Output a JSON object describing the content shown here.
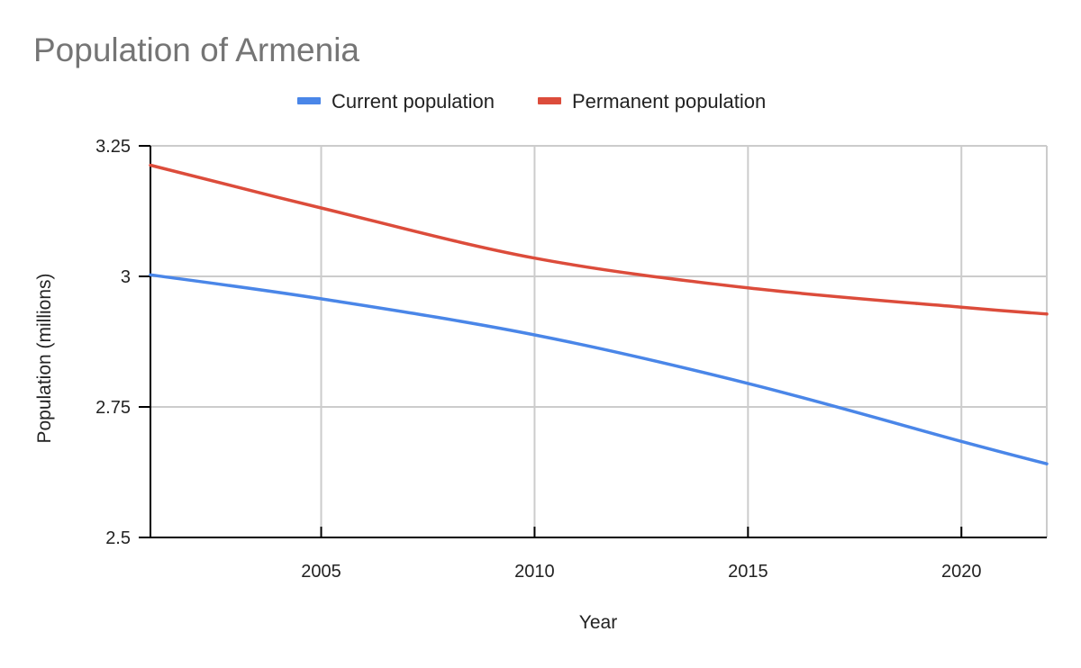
{
  "chart_data": {
    "type": "line",
    "title": "Population of Armenia",
    "xlabel": "Year",
    "ylabel": "Population (millions)",
    "xlim": [
      2001,
      2022
    ],
    "ylim": [
      2.5,
      3.25
    ],
    "x_ticks": [
      2005,
      2010,
      2015,
      2020
    ],
    "x_tick_labels": [
      "2005",
      "2010",
      "2015",
      "2020"
    ],
    "y_ticks": [
      2.5,
      2.75,
      3,
      3.25
    ],
    "y_tick_labels": [
      "2.5",
      "2.75",
      "3",
      "3.25"
    ],
    "grid": true,
    "legend_position": "top",
    "x": [
      2001,
      2005,
      2010,
      2015,
      2020,
      2022
    ],
    "series": [
      {
        "name": "Current population",
        "color": "#4a86e8",
        "values": [
          3.003,
          2.957,
          2.888,
          2.795,
          2.684,
          2.641
        ]
      },
      {
        "name": "Permanent population",
        "color": "#dc4c3b",
        "values": [
          3.213,
          3.131,
          3.035,
          2.978,
          2.941,
          2.928
        ]
      }
    ]
  }
}
